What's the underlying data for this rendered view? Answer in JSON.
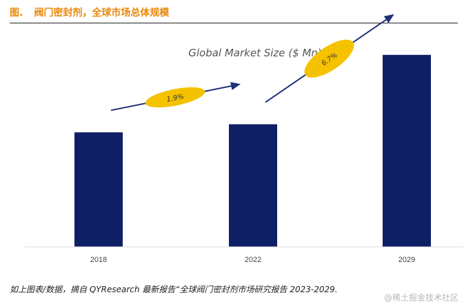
{
  "header": {
    "fig_label": "图.",
    "title": "阀门密封剂，全球市场总体规模"
  },
  "chart_data": {
    "type": "bar",
    "title": "Global Market Size ($ Mn)",
    "categories": [
      "2018",
      "2022",
      "2029"
    ],
    "values": [
      142,
      152,
      238
    ],
    "ylim": [
      0,
      260
    ],
    "xlabel": "",
    "ylabel": "",
    "bar_color": "#0f1f66",
    "growth_annotations": [
      {
        "label": "1.9%",
        "from": "2018",
        "to": "2022"
      },
      {
        "label": "6.7%",
        "from": "2022",
        "to": "2029"
      }
    ],
    "annotation_color": "#f5c200"
  },
  "footer": {
    "source": "如上图表/数据，摘自 QYResearch 最新报告“全球阀门密封剂市场研究报告 2023-2029.",
    "watermark": "@稀土掘金技术社区"
  }
}
